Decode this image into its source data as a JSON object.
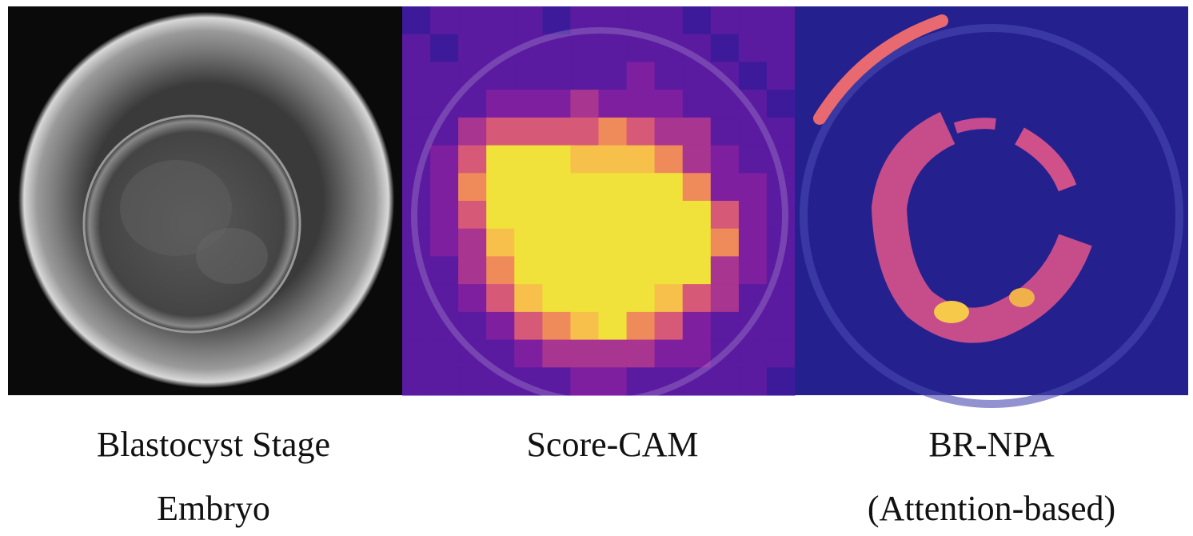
{
  "panels": [
    {
      "caption": [
        "Blastocyst Stage",
        "Embryo"
      ]
    },
    {
      "caption": [
        "Score-CAM"
      ]
    },
    {
      "caption": [
        "BR-NPA",
        "(Attention-based)"
      ]
    }
  ]
}
